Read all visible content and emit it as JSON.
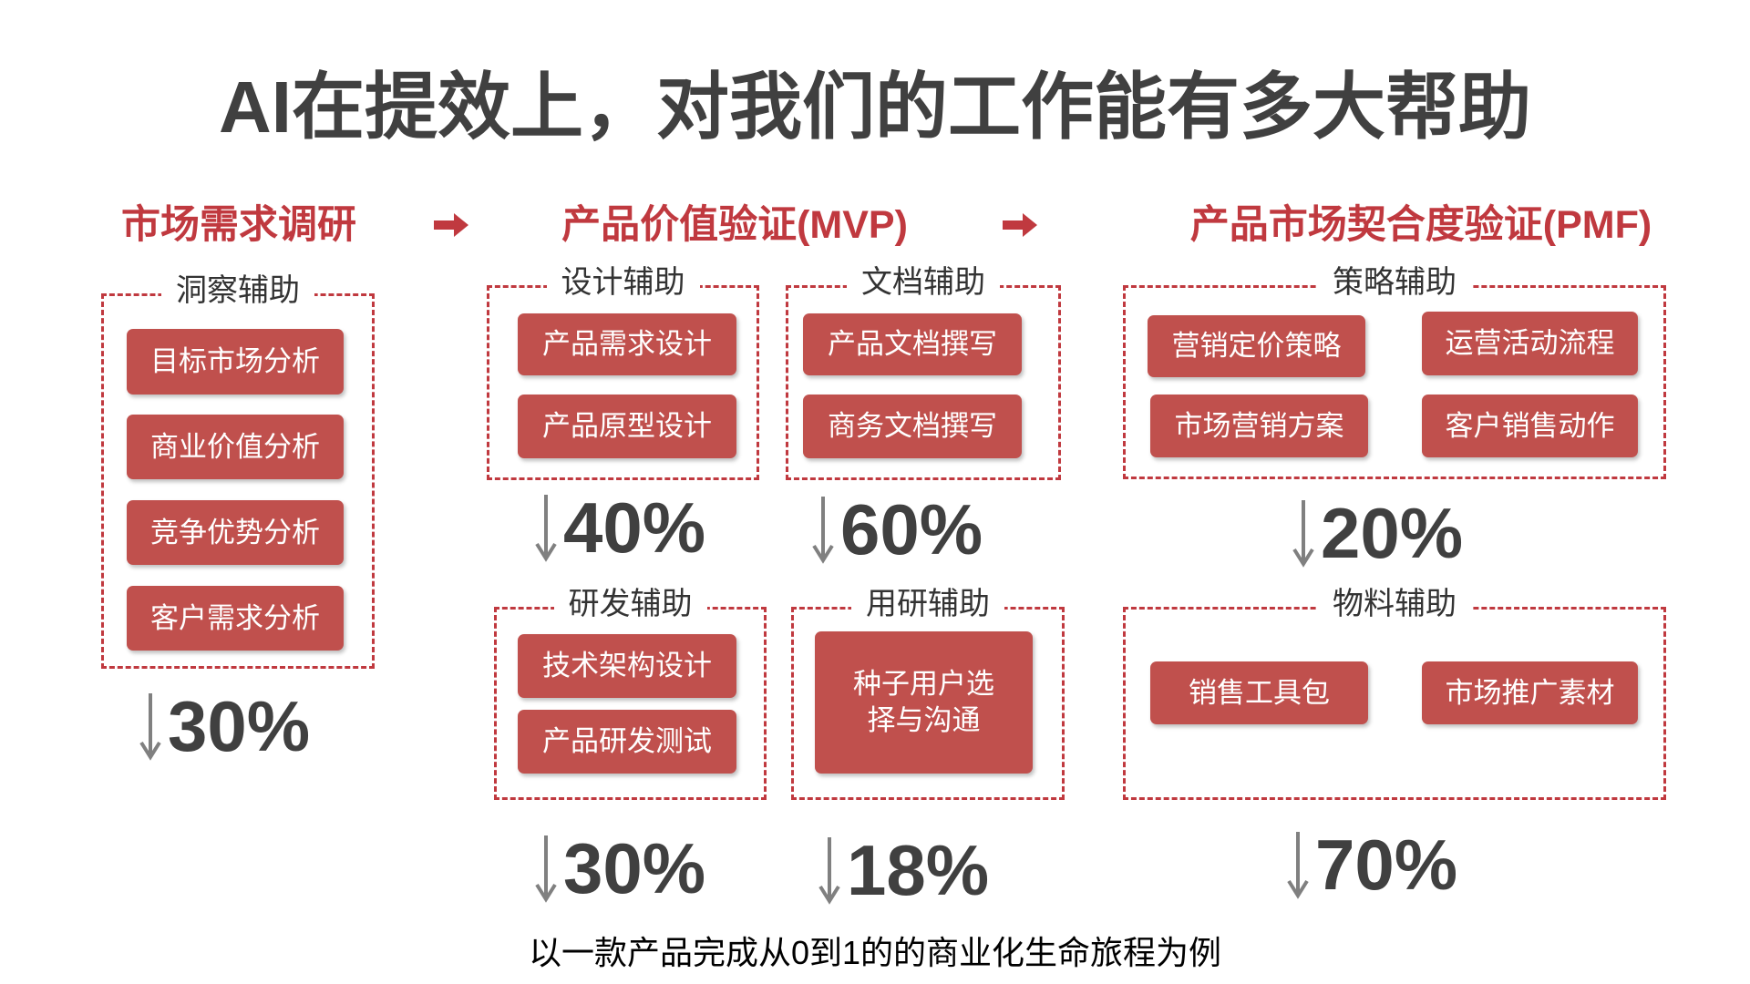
{
  "title": "AI在提效上，对我们的工作能有多大帮助",
  "stages": [
    {
      "label": "市场需求调研"
    },
    {
      "label": "产品价值验证(MVP)"
    },
    {
      "label": "产品市场契合度验证(PMF)"
    }
  ],
  "groups": [
    {
      "label": "洞察辅助",
      "items": [
        "目标市场分析",
        "商业价值分析",
        "竞争优势分析",
        "客户需求分析"
      ],
      "reduction": "30%"
    },
    {
      "label": "设计辅助",
      "items": [
        "产品需求设计",
        "产品原型设计"
      ],
      "reduction": "40%"
    },
    {
      "label": "文档辅助",
      "items": [
        "产品文档撰写",
        "商务文档撰写"
      ],
      "reduction": "60%"
    },
    {
      "label": "策略辅助",
      "items": [
        "营销定价策略",
        "运营活动流程",
        "市场营销方案",
        "客户销售动作"
      ],
      "reduction": "20%"
    },
    {
      "label": "研发辅助",
      "items": [
        "技术架构设计",
        "产品研发测试"
      ],
      "reduction": "30%"
    },
    {
      "label": "用研辅助",
      "items": [
        "种子用户选择与沟通"
      ],
      "reduction": "18%"
    },
    {
      "label": "物料辅助",
      "items": [
        "销售工具包",
        "市场推广素材"
      ],
      "reduction": "70%"
    }
  ],
  "footer": "以一款产品完成从0到1的的商业化生命旅程为例"
}
